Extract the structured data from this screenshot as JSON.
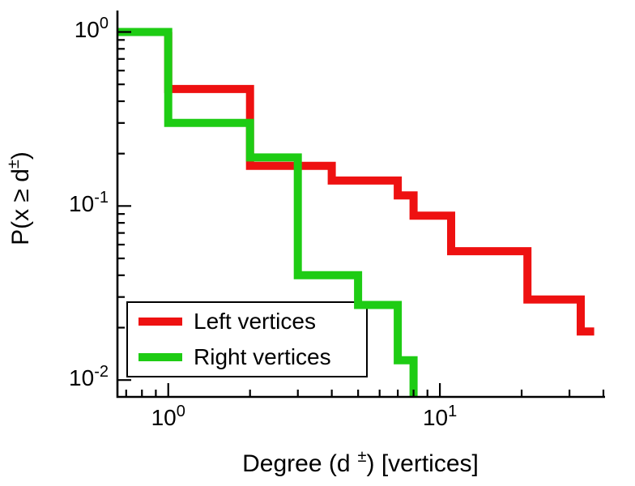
{
  "page": {
    "background": "#ffffff",
    "text_color": "#000000"
  },
  "chart_data": {
    "type": "line",
    "subtype": "ccdf-step-log-log",
    "title": "",
    "xlabel": "Degree (d±) [vertices]",
    "ylabel": "P(x ≥ d±)",
    "xlabel_parts": {
      "pre": "Degree (d",
      "sup": "±",
      "post": ") [vertices]"
    },
    "ylabel_parts": {
      "pre": "P(x ≥ d",
      "sup": "±",
      "post": ")"
    },
    "x_scale": "log",
    "y_scale": "log",
    "xlim": [
      0.65,
      40
    ],
    "ylim": [
      0.008,
      1.3
    ],
    "grid": false,
    "axis_color": "#000000",
    "x_ticks_major": [
      {
        "value": 1,
        "mantissa": "10",
        "exponent": "0"
      },
      {
        "value": 10,
        "mantissa": "10",
        "exponent": "1"
      }
    ],
    "x_ticks_minor": [
      0.7,
      0.8,
      0.9,
      2,
      3,
      4,
      5,
      6,
      7,
      8,
      9,
      20,
      30,
      40
    ],
    "y_ticks_major": [
      {
        "value": 1,
        "mantissa": "10",
        "exponent": "0"
      },
      {
        "value": 0.1,
        "mantissa": "10",
        "exponent": "-1"
      },
      {
        "value": 0.01,
        "mantissa": "10",
        "exponent": "-2"
      }
    ],
    "y_ticks_minor": [
      0.9,
      0.8,
      0.7,
      0.6,
      0.5,
      0.4,
      0.3,
      0.2,
      0.09,
      0.08,
      0.07,
      0.06,
      0.05,
      0.04,
      0.03,
      0.02
    ],
    "legend": {
      "position": "bottom-left",
      "items": [
        {
          "label": "Left vertices",
          "color": "#ee1111"
        },
        {
          "label": "Right vertices",
          "color": "#1ecc14"
        }
      ]
    },
    "series": [
      {
        "name": "Left vertices",
        "color": "#ee1111",
        "line_width": 10,
        "start_p": 1.0,
        "levels": [
          [
            1,
            0.47
          ],
          [
            2,
            0.17
          ],
          [
            4,
            0.14
          ],
          [
            7,
            0.115
          ],
          [
            8,
            0.088
          ],
          [
            11,
            0.055
          ],
          [
            21,
            0.029
          ],
          [
            33,
            0.019
          ]
        ],
        "end_x": 37
      },
      {
        "name": "Right vertices",
        "color": "#1ecc14",
        "line_width": 10,
        "start_p": 1.0,
        "levels": [
          [
            0.65,
            1.0
          ],
          [
            1,
            0.3
          ],
          [
            2,
            0.19
          ],
          [
            3,
            0.04
          ],
          [
            5,
            0.027
          ],
          [
            7,
            0.013
          ],
          [
            8,
            0.006
          ]
        ],
        "end_x": 8.2
      }
    ]
  }
}
